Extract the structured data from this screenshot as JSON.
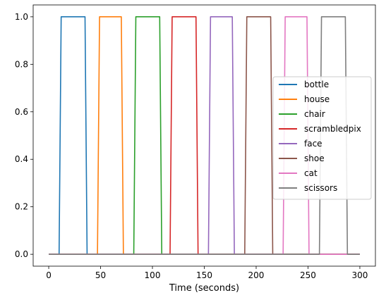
{
  "chart_data": {
    "type": "line",
    "title": "",
    "xlabel": "Time (seconds)",
    "ylabel": "",
    "xlim": [
      -15,
      315
    ],
    "ylim": [
      -0.05,
      1.05
    ],
    "xticks": [
      0,
      50,
      100,
      150,
      200,
      250,
      300
    ],
    "yticks": [
      0.0,
      0.2,
      0.4,
      0.6,
      0.8,
      1.0
    ],
    "xtick_labels": [
      "0",
      "50",
      "100",
      "150",
      "200",
      "250",
      "300"
    ],
    "ytick_labels": [
      "0.0",
      "0.2",
      "0.4",
      "0.6",
      "0.8",
      "1.0"
    ],
    "grid": false,
    "legend_position": "center-right",
    "series": [
      {
        "name": "bottle",
        "color": "#1f77b4",
        "x": [
          0,
          10,
          12,
          35,
          37,
          300
        ],
        "y": [
          0,
          0,
          1,
          1,
          0,
          0
        ]
      },
      {
        "name": "house",
        "color": "#ff7f0e",
        "x": [
          0,
          47,
          49,
          70,
          72,
          300
        ],
        "y": [
          0,
          0,
          1,
          1,
          0,
          0
        ]
      },
      {
        "name": "chair",
        "color": "#2ca02c",
        "x": [
          0,
          82,
          84,
          107,
          109,
          300
        ],
        "y": [
          0,
          0,
          1,
          1,
          0,
          0
        ]
      },
      {
        "name": "scrambledpix",
        "color": "#d62728",
        "x": [
          0,
          117,
          119,
          142,
          144,
          300
        ],
        "y": [
          0,
          0,
          1,
          1,
          0,
          0
        ]
      },
      {
        "name": "face",
        "color": "#9467bd",
        "x": [
          0,
          154,
          156,
          177,
          179,
          300
        ],
        "y": [
          0,
          0,
          1,
          1,
          0,
          0
        ]
      },
      {
        "name": "shoe",
        "color": "#8c564b",
        "x": [
          0,
          189,
          191,
          214,
          216,
          300
        ],
        "y": [
          0,
          0,
          1,
          1,
          0,
          0
        ]
      },
      {
        "name": "cat",
        "color": "#e377c2",
        "x": [
          0,
          226,
          228,
          249,
          251,
          300
        ],
        "y": [
          0,
          0,
          1,
          1,
          0,
          0
        ]
      },
      {
        "name": "scissors",
        "color": "#7f7f7f",
        "x": [
          0,
          261,
          263,
          286,
          288,
          300
        ],
        "y": [
          0,
          0,
          1,
          1,
          0,
          0
        ]
      }
    ]
  }
}
